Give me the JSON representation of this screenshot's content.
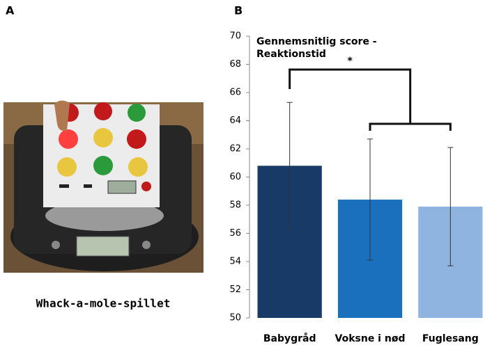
{
  "panel_labels": [
    "A",
    "B"
  ],
  "photo_caption": "Whack-a-mole-spillet",
  "chart_data": {
    "type": "bar",
    "title": [
      "Gennemsnitlig score -",
      "Reaktionstid"
    ],
    "annotations": [
      "*"
    ],
    "categories": [
      "Babygråd",
      "Voksne i nød",
      "Fuglesang"
    ],
    "values": [
      60.8,
      58.4,
      57.9
    ],
    "errors": [
      4.5,
      4.3,
      4.2
    ],
    "colors": [
      "#183a67",
      "#1b70be",
      "#8fb4e0"
    ],
    "ylim": [
      50,
      70
    ],
    "yticks": [
      50,
      52,
      54,
      56,
      58,
      60,
      62,
      64,
      66,
      68,
      70
    ]
  }
}
